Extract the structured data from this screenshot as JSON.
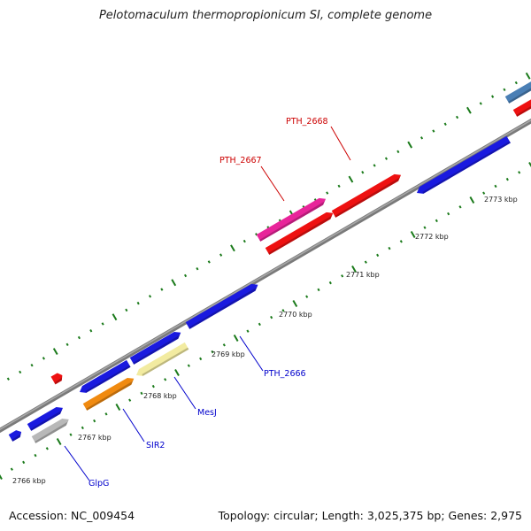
{
  "title": "Pelotomaculum thermopropionicum SI, complete genome",
  "footer": {
    "accession": "Accession: NC_009454",
    "topology": "Topology: circular; Length: 3,025,375 bp; Genes: 2,975"
  },
  "scale": {
    "tick_labels": [
      "2766 kbp",
      "2767 kbp",
      "2768 kbp",
      "2769 kbp",
      "2770 kbp",
      "2771 kbp",
      "2772 kbp",
      "2773 kbp"
    ]
  },
  "gene_labels": [
    {
      "text": "GlpG",
      "color": "#0000cc"
    },
    {
      "text": "SIR2",
      "color": "#0000cc"
    },
    {
      "text": "MesJ",
      "color": "#0000cc"
    },
    {
      "text": "PTH_2666",
      "color": "#0000cc"
    },
    {
      "text": "PTH_2667",
      "color": "#cc0000"
    },
    {
      "text": "PTH_2668",
      "color": "#cc0000"
    }
  ],
  "colors": {
    "blue": "#1a1adf",
    "red": "#ee1111",
    "pink": "#e8259a",
    "orange": "#f08a10",
    "khaki": "#f2eba0",
    "gray": "#b8b8b8",
    "steel": "#4a7fb5",
    "tick": "#1a7a1a",
    "backbone": "#8a8a8a"
  }
}
